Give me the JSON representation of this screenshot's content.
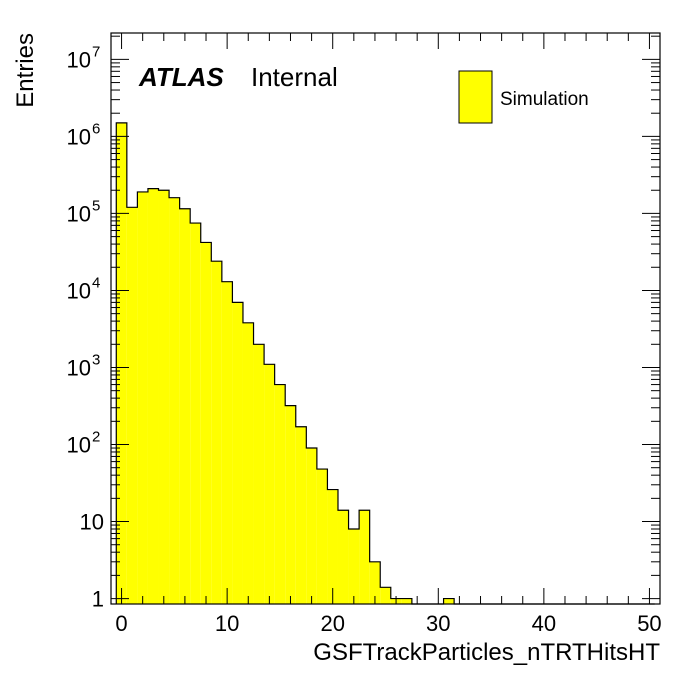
{
  "chart_data": {
    "type": "bar",
    "histogram": true,
    "xlabel": "GSFTrackParticles_nTRTHitsHT",
    "ylabel": "Entries",
    "xlim": [
      -1,
      51
    ],
    "ylim": [
      0.85,
      22000000
    ],
    "yscale": "log",
    "x_ticks": [
      0,
      10,
      20,
      30,
      40,
      50
    ],
    "x_tick_labels": [
      "0",
      "10",
      "20",
      "30",
      "40",
      "50"
    ],
    "y_ticks": [
      {
        "value": 1,
        "base": "1",
        "exp": ""
      },
      {
        "value": 10,
        "base": "10",
        "exp": ""
      },
      {
        "value": 100,
        "base": "10",
        "exp": "2"
      },
      {
        "value": 1000,
        "base": "10",
        "exp": "3"
      },
      {
        "value": 10000,
        "base": "10",
        "exp": "4"
      },
      {
        "value": 100000,
        "base": "10",
        "exp": "5"
      },
      {
        "value": 1000000,
        "base": "10",
        "exp": "6"
      },
      {
        "value": 10000000,
        "base": "10",
        "exp": "7"
      }
    ],
    "bin_width": 1,
    "bins_start": -0.5,
    "series": [
      {
        "name": "Simulation",
        "color": "#ffff00",
        "edge_color": "#000000",
        "values": [
          1500000,
          120000,
          190000,
          210000,
          200000,
          160000,
          115000,
          75000,
          42000,
          24000,
          13000,
          7000,
          3800,
          2000,
          1100,
          600,
          320,
          170,
          90,
          48,
          26,
          14,
          8,
          14,
          3,
          1.4,
          1,
          1,
          0,
          0,
          0,
          1,
          0,
          0,
          0,
          0,
          0,
          0,
          0,
          0,
          0,
          0,
          0,
          0,
          0,
          0,
          0,
          0,
          0,
          0,
          0
        ]
      }
    ],
    "annotations": {
      "experiment": "ATLAS",
      "status": "Internal"
    },
    "legend": {
      "placement": "top-right",
      "entries": [
        "Simulation"
      ]
    }
  }
}
